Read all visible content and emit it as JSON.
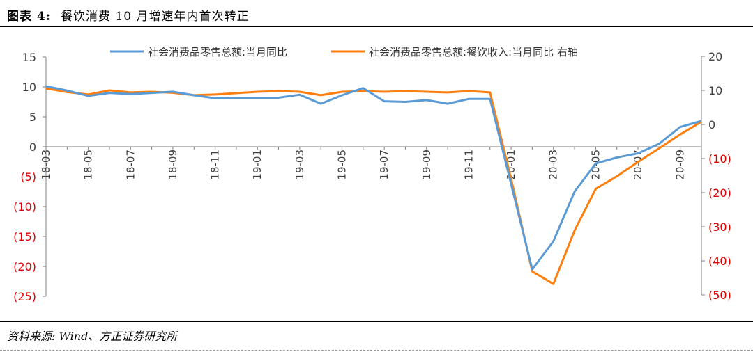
{
  "header": {
    "figure_label": "图表 4:",
    "title": "餐饮消费 10 月增速年内首次转正"
  },
  "footer": {
    "source": "资料来源: Wind、方正证券研究所"
  },
  "colors": {
    "series_retail": "#5b9bd5",
    "series_catering": "#ff7f0e",
    "negative_tick": "#e00000"
  },
  "chart_data": {
    "type": "line",
    "x": [
      "18-03",
      "18-04",
      "18-05",
      "18-06",
      "18-07",
      "18-08",
      "18-09",
      "18-10",
      "18-11",
      "18-12",
      "19-01",
      "19-02",
      "19-03",
      "19-04",
      "19-05",
      "19-06",
      "19-07",
      "19-08",
      "19-09",
      "19-10",
      "19-11",
      "19-12",
      "20-01",
      "20-02",
      "20-03",
      "20-04",
      "20-05",
      "20-06",
      "20-07",
      "20-08",
      "20-09",
      "20-10"
    ],
    "x_tick_labels": [
      "18-03",
      "18-05",
      "18-07",
      "18-09",
      "18-11",
      "19-01",
      "19-03",
      "19-05",
      "19-07",
      "19-09",
      "19-11",
      "20-01",
      "20-03",
      "20-05",
      "20-07",
      "20-09"
    ],
    "series": [
      {
        "name": "社会消费品零售总额:当月同比",
        "axis": "left",
        "values": [
          10.1,
          9.4,
          8.5,
          9.0,
          8.8,
          9.0,
          9.2,
          8.6,
          8.1,
          8.2,
          8.2,
          8.2,
          8.7,
          7.2,
          8.6,
          9.8,
          7.6,
          7.5,
          7.8,
          7.2,
          8.0,
          8.0,
          null,
          -20.5,
          -15.8,
          -7.5,
          -2.8,
          -1.8,
          -1.1,
          0.5,
          3.3,
          4.3
        ]
      },
      {
        "name": "社会消费品零售总额:餐饮收入:当月同比 右轴",
        "axis": "right",
        "values": [
          10.6,
          9.5,
          8.8,
          10.0,
          9.4,
          9.6,
          9.3,
          8.6,
          8.8,
          9.2,
          9.6,
          9.8,
          9.6,
          8.6,
          9.6,
          9.8,
          9.6,
          9.8,
          9.6,
          9.4,
          9.8,
          9.4,
          -16.0,
          -43.1,
          -46.8,
          -31.1,
          -18.9,
          -15.2,
          -11.0,
          -7.0,
          -2.9,
          0.8
        ]
      }
    ],
    "y_left": {
      "min": -25,
      "max": 15,
      "ticks": [
        15,
        10,
        5,
        0,
        "(5)",
        "(10)",
        "(15)",
        "(20)",
        "(25)"
      ]
    },
    "y_right": {
      "min": -50,
      "max": 20,
      "ticks": [
        20,
        10,
        0,
        "(10)",
        "(20)",
        "(30)",
        "(40)",
        "(50)"
      ]
    },
    "legend": "top",
    "grid": false
  }
}
